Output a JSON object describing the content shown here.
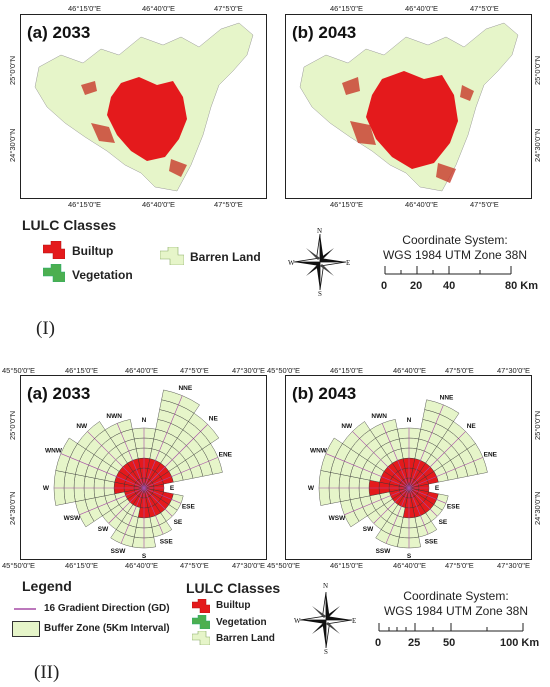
{
  "section1": {
    "label": "(I)",
    "maps": [
      {
        "title": "(a) 2033",
        "lon_top": [
          "46°15'0\"E",
          "46°40'0\"E",
          "47°5'0\"E"
        ],
        "lon_bottom": [
          "46°15'0\"E",
          "46°40'0\"E",
          "47°5'0\"E"
        ],
        "lat_left": [
          "25°0'0\"N",
          "24°30'0\"N"
        ]
      },
      {
        "title": "(b) 2043",
        "lon_top": [
          "46°15'0\"E",
          "46°40'0\"E",
          "47°5'0\"E"
        ],
        "lon_bottom": [
          "46°15'0\"E",
          "46°40'0\"E",
          "47°5'0\"E"
        ],
        "lat_right": [
          "25°0'0\"N",
          "24°30'0\"N"
        ]
      }
    ],
    "legend": {
      "heading": "LULC Classes",
      "items": [
        {
          "name": "Builtup",
          "color": "#e41a1c"
        },
        {
          "name": "Vegetation",
          "color": "#4caf50"
        },
        {
          "name": "Barren Land",
          "color": "#e6f5c9"
        }
      ]
    },
    "coordinate_system": {
      "line1": "Coordinate System:",
      "line2": "WGS 1984 UTM Zone 38N"
    },
    "scale": {
      "ticks": [
        "0",
        "20",
        "40",
        "80 Km"
      ]
    }
  },
  "section2": {
    "label": "(II)",
    "maps": [
      {
        "title": "(a) 2033",
        "lon_top": [
          "45°50'0\"E",
          "46°15'0\"E",
          "46°40'0\"E",
          "47°5'0\"E",
          "47°30'0\"E"
        ],
        "lon_bottom": [
          "45°50'0\"E",
          "46°15'0\"E",
          "46°40'0\"E",
          "47°5'0\"E",
          "47°30'0\"E"
        ],
        "lat_left": [
          "25°0'0\"N",
          "24°30'0\"N"
        ]
      },
      {
        "title": "(b) 2043",
        "lon_top": [
          "45°50'0\"E",
          "46°15'0\"E",
          "46°40'0\"E",
          "47°5'0\"E",
          "47°30'0\"E"
        ],
        "lon_bottom": [
          "45°50'0\"E",
          "46°15'0\"E",
          "46°40'0\"E",
          "47°5'0\"E",
          "47°30'0\"E"
        ],
        "lat_right": [
          "25°0'0\"N",
          "24°30'0\"N"
        ]
      }
    ],
    "directions": [
      "N",
      "NNE",
      "NE",
      "ENE",
      "E",
      "ESE",
      "SE",
      "SSE",
      "S",
      "SSW",
      "SW",
      "WSW",
      "W",
      "WNW",
      "NW",
      "NWN"
    ],
    "legend": {
      "heading": "Legend",
      "gd_label": "16 Gradient Direction (GD)",
      "buffer_label": "Buffer Zone (5Km Interval)",
      "lulc_heading": "LULC Classes",
      "items": [
        {
          "name": "Builtup",
          "color": "#e41a1c"
        },
        {
          "name": "Vegetation",
          "color": "#4caf50"
        },
        {
          "name": "Barren Land",
          "color": "#e6f5c9"
        }
      ]
    },
    "coordinate_system": {
      "line1": "Coordinate System:",
      "line2": "WGS 1984 UTM Zone 38N"
    },
    "scale": {
      "ticks": [
        "0",
        "25",
        "50",
        "100 Km"
      ]
    }
  },
  "compass": {
    "n": "N",
    "s": "S",
    "e": "E",
    "w": "W"
  },
  "colors": {
    "builtup": "#e41a1c",
    "vegetation": "#4caf50",
    "barren": "#e6f5c9",
    "gd_line": "#a64ca6"
  }
}
